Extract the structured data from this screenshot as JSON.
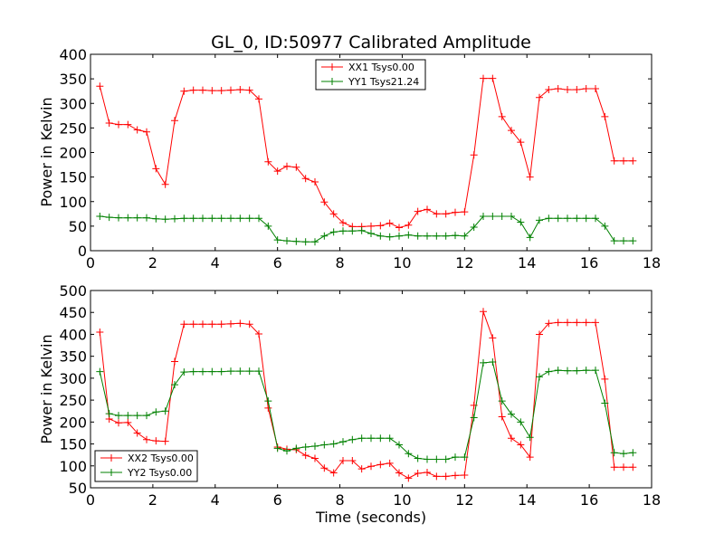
{
  "chart_data": [
    {
      "type": "line",
      "title": "GL_0, ID:50977 Calibrated Amplitude",
      "xlabel": "",
      "ylabel": "Power in Kelvin",
      "xlim": [
        0,
        18
      ],
      "ylim": [
        0,
        400
      ],
      "xticks": [
        0,
        2,
        4,
        6,
        8,
        10,
        12,
        14,
        16,
        18
      ],
      "yticks": [
        0,
        50,
        100,
        150,
        200,
        250,
        300,
        350,
        400
      ],
      "legend_position": "upper center",
      "grid": false,
      "x": [
        0.3,
        0.6,
        0.9,
        1.2,
        1.5,
        1.8,
        2.1,
        2.4,
        2.7,
        3.0,
        3.3,
        3.6,
        3.9,
        4.2,
        4.5,
        4.8,
        5.1,
        5.4,
        5.7,
        6.0,
        6.3,
        6.6,
        6.9,
        7.2,
        7.5,
        7.8,
        8.1,
        8.4,
        8.7,
        9.0,
        9.3,
        9.6,
        9.9,
        10.2,
        10.5,
        10.8,
        11.1,
        11.4,
        11.7,
        12.0,
        12.3,
        12.6,
        12.9,
        13.2,
        13.5,
        13.8,
        14.1,
        14.4,
        14.7,
        15.0,
        15.3,
        15.6,
        15.9,
        16.2,
        16.5,
        16.8,
        17.1,
        17.4
      ],
      "series": [
        {
          "name": "XX1 Tsys0.00",
          "color": "#ff0000",
          "values": [
            335,
            260,
            257,
            257,
            246,
            242,
            167,
            135,
            265,
            325,
            327,
            327,
            326,
            326,
            327,
            328,
            327,
            309,
            181,
            162,
            172,
            170,
            147,
            140,
            99,
            75,
            57,
            49,
            49,
            50,
            51,
            56,
            47,
            52,
            80,
            84,
            75,
            75,
            78,
            79,
            195,
            351,
            351,
            273,
            245,
            221,
            150,
            312,
            328,
            330,
            328,
            328,
            330,
            330,
            273,
            183,
            183,
            183
          ]
        },
        {
          "name": "YY1 Tsys21.24",
          "color": "#008000",
          "values": [
            70,
            68,
            67,
            67,
            67,
            67,
            65,
            64,
            65,
            66,
            66,
            66,
            66,
            66,
            66,
            66,
            66,
            66,
            50,
            22,
            20,
            19,
            18,
            18,
            30,
            38,
            40,
            40,
            41,
            35,
            30,
            28,
            30,
            32,
            30,
            30,
            30,
            30,
            31,
            30,
            48,
            70,
            70,
            70,
            70,
            58,
            27,
            62,
            66,
            66,
            66,
            66,
            66,
            66,
            50,
            20,
            20,
            20
          ]
        }
      ]
    },
    {
      "type": "line",
      "title": "",
      "xlabel": "Time (seconds)",
      "ylabel": "Power in Kelvin",
      "xlim": [
        0,
        18
      ],
      "ylim": [
        50,
        500
      ],
      "xticks": [
        0,
        2,
        4,
        6,
        8,
        10,
        12,
        14,
        16,
        18
      ],
      "yticks": [
        50,
        100,
        150,
        200,
        250,
        300,
        350,
        400,
        450,
        500
      ],
      "legend_position": "lower left",
      "grid": false,
      "x": [
        0.3,
        0.6,
        0.9,
        1.2,
        1.5,
        1.8,
        2.1,
        2.4,
        2.7,
        3.0,
        3.3,
        3.6,
        3.9,
        4.2,
        4.5,
        4.8,
        5.1,
        5.4,
        5.7,
        6.0,
        6.3,
        6.6,
        6.9,
        7.2,
        7.5,
        7.8,
        8.1,
        8.4,
        8.7,
        9.0,
        9.3,
        9.6,
        9.9,
        10.2,
        10.5,
        10.8,
        11.1,
        11.4,
        11.7,
        12.0,
        12.3,
        12.6,
        12.9,
        13.2,
        13.5,
        13.8,
        14.1,
        14.4,
        14.7,
        15.0,
        15.3,
        15.6,
        15.9,
        16.2,
        16.5,
        16.8,
        17.1,
        17.4
      ],
      "series": [
        {
          "name": "XX2 Tsys0.00",
          "color": "#ff0000",
          "values": [
            405,
            207,
            198,
            199,
            175,
            160,
            157,
            156,
            338,
            423,
            423,
            423,
            423,
            423,
            424,
            425,
            423,
            401,
            232,
            143,
            138,
            137,
            124,
            117,
            95,
            84,
            112,
            112,
            93,
            99,
            103,
            106,
            84,
            72,
            83,
            85,
            76,
            76,
            78,
            79,
            238,
            452,
            392,
            212,
            163,
            148,
            120,
            400,
            425,
            427,
            427,
            427,
            427,
            427,
            298,
            97,
            97,
            97
          ]
        },
        {
          "name": "YY2 Tsys0.00",
          "color": "#008000",
          "values": [
            315,
            219,
            215,
            215,
            215,
            215,
            223,
            225,
            285,
            314,
            315,
            315,
            315,
            315,
            316,
            316,
            316,
            316,
            248,
            140,
            134,
            140,
            143,
            145,
            148,
            150,
            155,
            160,
            163,
            163,
            163,
            163,
            148,
            128,
            117,
            115,
            115,
            115,
            120,
            120,
            210,
            335,
            337,
            248,
            218,
            200,
            165,
            303,
            315,
            318,
            317,
            317,
            318,
            318,
            243,
            130,
            128,
            130
          ]
        }
      ]
    }
  ]
}
